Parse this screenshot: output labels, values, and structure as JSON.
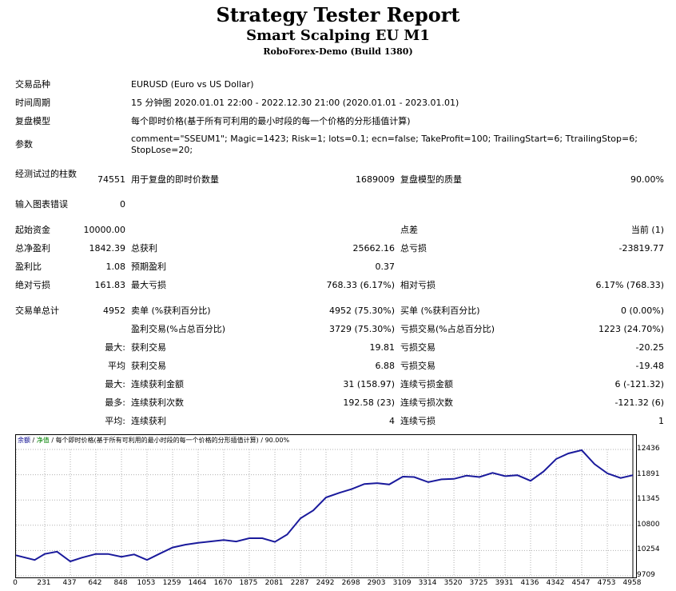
{
  "header": {
    "title": "Strategy Tester Report",
    "subtitle": "Smart Scalping EU M1",
    "server": "RoboForex-Demo (Build 1380)"
  },
  "info": {
    "symbol_label": "交易品种",
    "symbol_value": "EURUSD (Euro vs US Dollar)",
    "period_label": "时间周期",
    "period_value": "15 分钟图 2020.01.01 22:00 - 2022.12.30 21:00 (2020.01.01 - 2023.01.01)",
    "model_label": "复盘模型",
    "model_value": "每个即时价格(基于所有可利用的最小时段的每一个价格的分形插值计算)",
    "params_label": "参数",
    "params_value_1": "comment=\"SSEUM1\"; Magic=1423; Risk=1; lots=0.1; ecn=false; TakeProfit=100; TrailingStart=6; TtrailingStop=6;",
    "params_value_2": "StopLose=20;"
  },
  "stats": {
    "bars_label": "经测试过的柱数",
    "bars_value": "74551",
    "ticks_label": "用于复盘的即时价数量",
    "ticks_value": "1689009",
    "quality_label": "复盘模型的质量",
    "quality_value": "90.00%",
    "errors_label": "输入图表错误",
    "errors_value": "0",
    "deposit_label": "起始资金",
    "deposit_value": "10000.00",
    "spread_label": "点差",
    "spread_value": "当前 (1)",
    "net_label": "总净盈利",
    "net_value": "1842.39",
    "gross_profit_label": "总获利",
    "gross_profit_value": "25662.16",
    "gross_loss_label": "总亏损",
    "gross_loss_value": "-23819.77",
    "pf_label": "盈利比",
    "pf_value": "1.08",
    "payoff_label": "预期盈利",
    "payoff_value": "0.37",
    "abs_dd_label": "绝对亏损",
    "abs_dd_value": "161.83",
    "max_dd_label": "最大亏损",
    "max_dd_value": "768.33 (6.17%)",
    "rel_dd_label": "相对亏损",
    "rel_dd_value": "6.17% (768.33)",
    "trades_label": "交易单总计",
    "trades_value": "4952",
    "short_label": "卖单 (%获利百分比)",
    "short_value": "4952 (75.30%)",
    "long_label": "买单 (%获利百分比)",
    "long_value": "0 (0.00%)",
    "win_label": "盈利交易(%占总百分比)",
    "win_value": "3729 (75.30%)",
    "loss_label": "亏损交易(%占总百分比)",
    "loss_value": "1223 (24.70%)",
    "largest_label": "最大:",
    "largest_win_label": "获利交易",
    "largest_win_value": "19.81",
    "largest_loss_label": "亏损交易",
    "largest_loss_value": "-20.25",
    "avg_label": "平均",
    "avg_win_label": "获利交易",
    "avg_win_value": "6.88",
    "avg_loss_label": "亏损交易",
    "avg_loss_value": "-19.48",
    "max_cons_label": "最大:",
    "max_cons_win_label": "连续获利金额",
    "max_cons_win_value": "31 (158.97)",
    "max_cons_loss_label": "连续亏损金额",
    "max_cons_loss_value": "6 (-121.32)",
    "max2_label": "最多:",
    "max_cons_profit_label": "连续获利次数",
    "max_cons_profit_value": "192.58 (23)",
    "max_cons_lossamt_label": "连续亏损次数",
    "max_cons_lossamt_value": "-121.32 (6)",
    "avg2_label": "平均:",
    "avg_cons_win_label": "连续获利",
    "avg_cons_win_value": "4",
    "avg_cons_loss_label": "连续亏损",
    "avg_cons_loss_value": "1"
  },
  "legend": {
    "balance": "余额",
    "sep1": " / ",
    "equity": "净值",
    "rest": " / 每个即时价格(基于所有可利用的最小时段的每一个价格的分形插值计算) / 90.00%"
  },
  "colors": {
    "line": "#1a1a9c",
    "grid": "#b0b0b0"
  },
  "chart_data": {
    "type": "line",
    "title": "",
    "xlabel": "",
    "ylabel": "",
    "x_ticks": [
      "0",
      "231",
      "437",
      "642",
      "848",
      "1053",
      "1259",
      "1464",
      "1670",
      "1875",
      "2081",
      "2287",
      "2492",
      "2698",
      "2903",
      "3109",
      "3314",
      "3520",
      "3725",
      "3931",
      "4136",
      "4342",
      "4547",
      "4753",
      "4958"
    ],
    "y_ticks": [
      "12436",
      "11891",
      "11345",
      "10800",
      "10254",
      "9709"
    ],
    "xlim": [
      0,
      4958
    ],
    "ylim": [
      9709,
      12436
    ],
    "grid": true,
    "series": [
      {
        "x": [
          0,
          150,
          231,
          330,
          437,
          530,
          642,
          740,
          848,
          950,
          1053,
          1150,
          1259,
          1360,
          1464,
          1560,
          1670,
          1770,
          1875,
          1980,
          2081,
          2180,
          2287,
          2390,
          2492,
          2600,
          2698,
          2800,
          2903,
          3000,
          3109,
          3200,
          3314,
          3420,
          3520,
          3620,
          3725,
          3830,
          3931,
          4030,
          4136,
          4240,
          4342,
          4440,
          4547,
          4650,
          4753,
          4860,
          4958
        ],
        "y": [
          10150,
          10050,
          10180,
          10230,
          10020,
          10100,
          10180,
          10180,
          10120,
          10170,
          10050,
          10180,
          10320,
          10380,
          10420,
          10450,
          10480,
          10450,
          10520,
          10520,
          10440,
          10600,
          10950,
          11120,
          11400,
          11500,
          11580,
          11690,
          11710,
          11680,
          11850,
          11840,
          11730,
          11790,
          11800,
          11870,
          11840,
          11930,
          11860,
          11880,
          11760,
          11960,
          12230,
          12350,
          12420,
          12120,
          11920,
          11820,
          11880
        ]
      }
    ]
  }
}
